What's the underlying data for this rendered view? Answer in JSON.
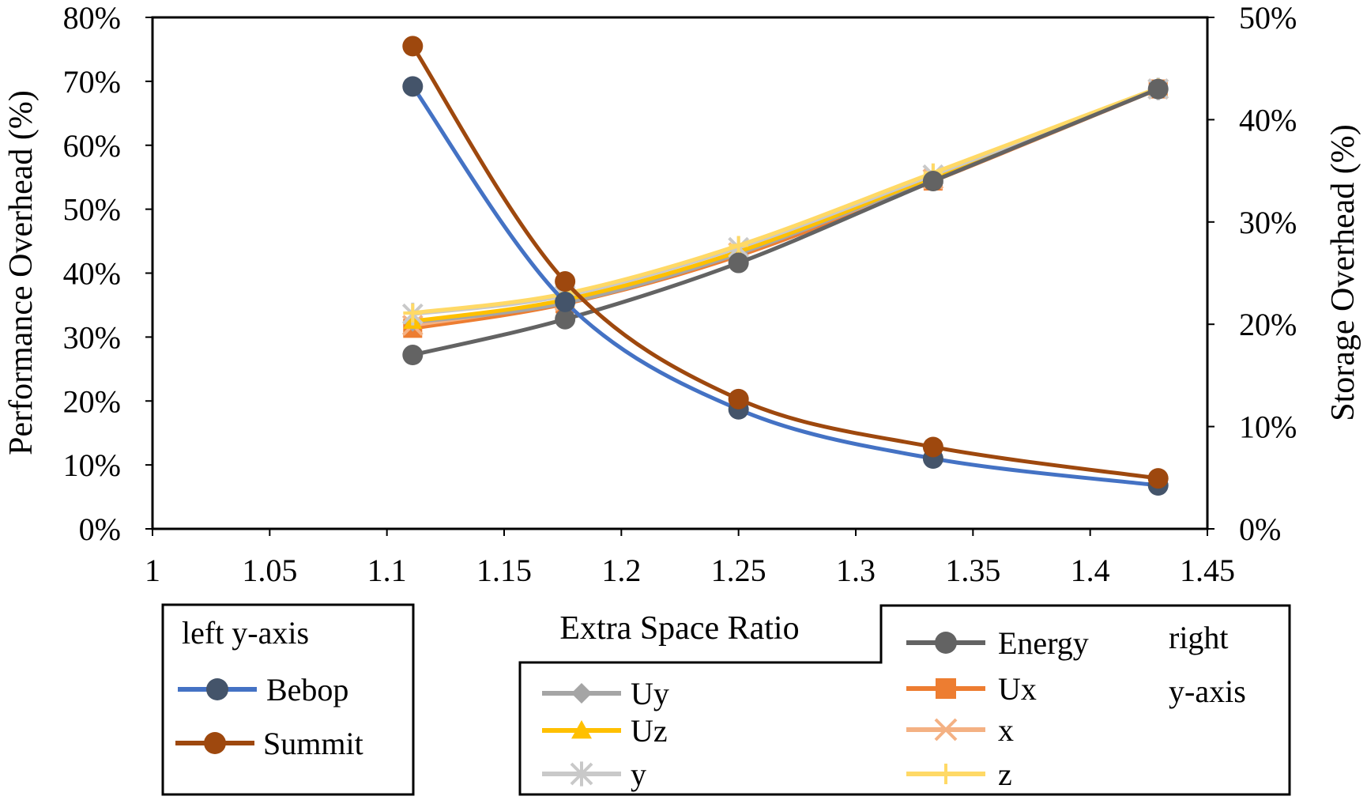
{
  "chart_data": {
    "type": "line",
    "xlabel": "Extra Space Ratio",
    "ylabel_left": "Performance Overhead (%)",
    "ylabel_right": "Storage Overhead (%)",
    "xlim": [
      1,
      1.45
    ],
    "ylim_left": [
      0,
      80
    ],
    "ylim_right": [
      0,
      50
    ],
    "x_ticks": [
      "1",
      "1.05",
      "1.1",
      "1.15",
      "1.2",
      "1.25",
      "1.3",
      "1.35",
      "1.4",
      "1.45"
    ],
    "y_left_ticks": [
      "0%",
      "10%",
      "20%",
      "30%",
      "40%",
      "50%",
      "60%",
      "70%",
      "80%"
    ],
    "y_right_ticks": [
      "0%",
      "10%",
      "20%",
      "30%",
      "40%",
      "50%"
    ],
    "x": [
      1.111,
      1.176,
      1.25,
      1.333,
      1.429
    ],
    "series": [
      {
        "name": "Bebop",
        "axis": "left",
        "color": "#4472C4",
        "marker_color": "#44546A",
        "marker": "circle",
        "values": [
          69.2,
          35.5,
          18.7,
          11.0,
          6.8
        ]
      },
      {
        "name": "Summit",
        "axis": "left",
        "color": "#9E480E",
        "marker_color": "#9E480E",
        "marker": "circle",
        "values": [
          75.5,
          38.7,
          20.3,
          12.8,
          7.9
        ]
      },
      {
        "name": "Uy",
        "axis": "right",
        "color": "#A5A5A5",
        "marker_color": "#A5A5A5",
        "marker": "diamond",
        "values": [
          20.2,
          22.1,
          26.9,
          34.3,
          43.0
        ]
      },
      {
        "name": "Uz",
        "axis": "right",
        "color": "#FFC000",
        "marker_color": "#FFC000",
        "marker": "triangle",
        "values": [
          20.3,
          22.4,
          27.1,
          34.4,
          43.0
        ]
      },
      {
        "name": "y",
        "axis": "right",
        "color": "#C9C9C9",
        "marker_color": "#C9C9C9",
        "marker": "asterisk",
        "values": [
          21.0,
          22.8,
          27.5,
          34.6,
          43.0
        ]
      },
      {
        "name": "Ux",
        "axis": "right",
        "color": "#ED7D31",
        "marker_color": "#ED7D31",
        "marker": "square",
        "values": [
          19.6,
          22.0,
          26.7,
          34.0,
          43.0
        ]
      },
      {
        "name": "x",
        "axis": "right",
        "color": "#F4B183",
        "marker_color": "#F4B183",
        "marker": "x",
        "values": [
          19.9,
          22.3,
          27.0,
          34.2,
          43.0
        ]
      },
      {
        "name": "z",
        "axis": "right",
        "color": "#FFD966",
        "marker_color": "#FFD966",
        "marker": "plus",
        "values": [
          21.1,
          23.0,
          27.7,
          34.8,
          43.1
        ]
      },
      {
        "name": "Energy",
        "axis": "right",
        "color": "#636363",
        "marker_color": "#636363",
        "marker": "circle",
        "values": [
          17.0,
          20.5,
          26.0,
          34.0,
          43.0
        ]
      }
    ],
    "legend_left": {
      "title": "left y-axis",
      "entries": [
        "Bebop",
        "Summit"
      ]
    },
    "legend_right": {
      "title_line1": "right",
      "title_line2": "y-axis",
      "entries": [
        "Energy",
        "Uy",
        "Ux",
        "Uz",
        "x",
        "y",
        "z"
      ]
    }
  }
}
